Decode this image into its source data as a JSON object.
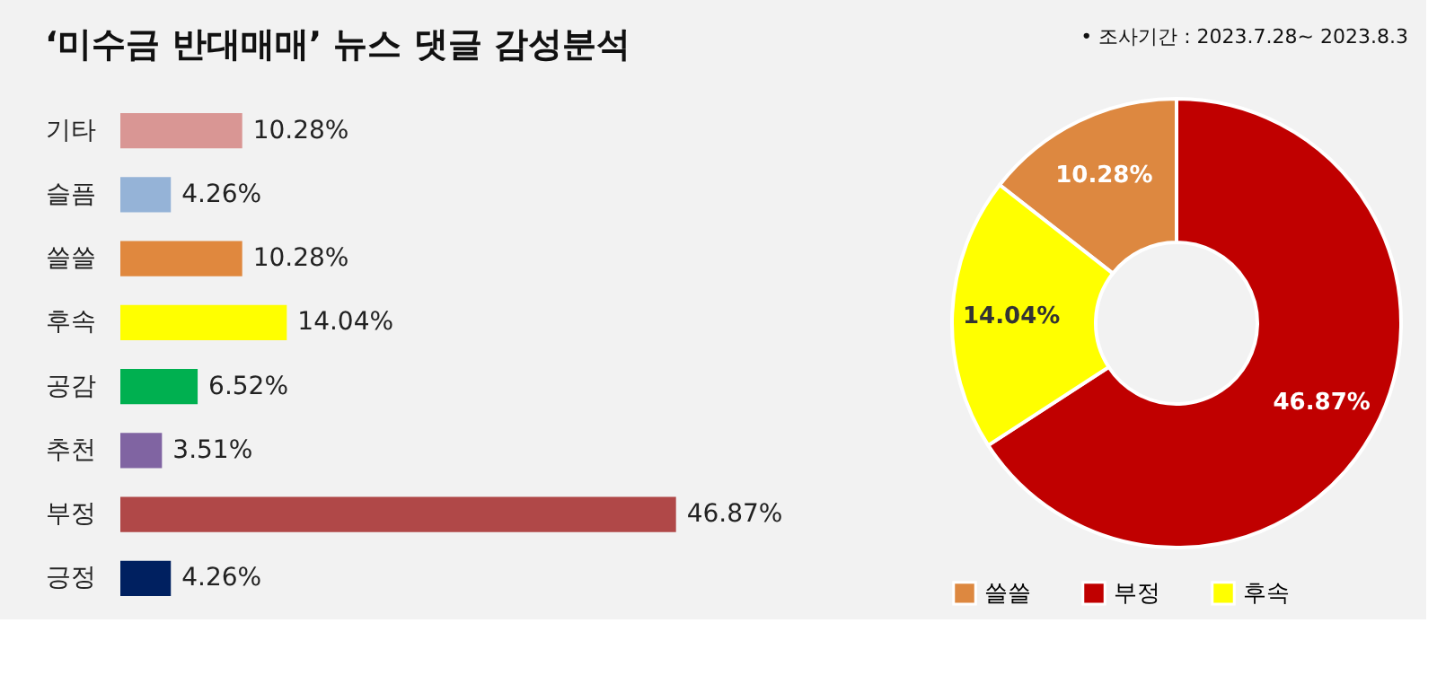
{
  "chart_data": [
    {
      "type": "bar",
      "orientation": "horizontal",
      "title": "‘미수금 반대매매’ 뉴스 댓글 감성분석",
      "categories": [
        "기타",
        "슬픔",
        "쓸쓸",
        "후속",
        "공감",
        "추천",
        "부정",
        "긍정"
      ],
      "values": [
        10.28,
        4.26,
        10.28,
        14.04,
        6.52,
        3.51,
        46.87,
        4.26
      ],
      "colors": [
        "#d99694",
        "#95b3d7",
        "#e0883e",
        "#ffff00",
        "#00b050",
        "#8064a2",
        "#b04848",
        "#002060"
      ],
      "value_labels": [
        "10.28%",
        "4.26%",
        "10.28%",
        "14.04%",
        "6.52%",
        "3.51%",
        "46.87%",
        "4.26%"
      ],
      "grid": false,
      "legend": false
    },
    {
      "type": "donut",
      "annotations": [
        "•   조사기간 : 2023.7.28~  2023.8.3"
      ],
      "categories": [
        "쓸쓸",
        "부정",
        "후속"
      ],
      "values": [
        10.28,
        46.87,
        14.04
      ],
      "colors": [
        "#dd8840",
        "#c00000",
        "#ffff00"
      ],
      "value_labels": [
        "10.28%",
        "46.87%",
        "14.04%"
      ],
      "legend": "bottom"
    }
  ]
}
